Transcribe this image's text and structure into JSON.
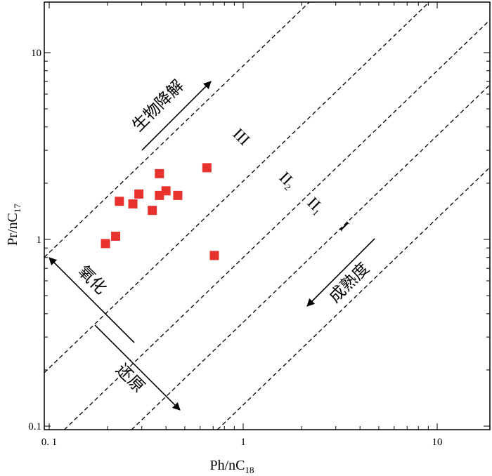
{
  "chart_data": {
    "type": "scatter",
    "title": "",
    "xlabel": "Ph/nC",
    "xlabel_sub": "18",
    "ylabel": "Pr/nC",
    "ylabel_sub": "17",
    "x_scale": "log",
    "y_scale": "log",
    "xlim": [
      0.1,
      20
    ],
    "ylim": [
      0.1,
      20
    ],
    "x_tick_labels": [
      "0. 1",
      "1",
      "10"
    ],
    "y_tick_labels": [
      "0.1",
      "1",
      "10"
    ],
    "marker_color": "#e8322e",
    "points": [
      {
        "x": 0.195,
        "y": 0.95
      },
      {
        "x": 0.22,
        "y": 1.04
      },
      {
        "x": 0.23,
        "y": 1.6
      },
      {
        "x": 0.27,
        "y": 1.55
      },
      {
        "x": 0.29,
        "y": 1.75
      },
      {
        "x": 0.34,
        "y": 1.43
      },
      {
        "x": 0.37,
        "y": 2.25
      },
      {
        "x": 0.37,
        "y": 1.72
      },
      {
        "x": 0.4,
        "y": 1.82
      },
      {
        "x": 0.46,
        "y": 1.72
      },
      {
        "x": 0.65,
        "y": 2.42
      },
      {
        "x": 0.71,
        "y": 0.82
      }
    ],
    "boundary_lines": [
      {
        "ratio": 8.5
      },
      {
        "ratio": 2.05
      },
      {
        "ratio": 0.8
      },
      {
        "ratio": 0.36
      },
      {
        "ratio": 0.13
      }
    ],
    "zone_labels": [
      {
        "main": "III",
        "sub": ""
      },
      {
        "main": "II",
        "sub": "2"
      },
      {
        "main": "II",
        "sub": "1"
      },
      {
        "main": "I",
        "sub": ""
      }
    ],
    "annotations": {
      "biodegradation": "生物降解",
      "maturity": "成熟度",
      "oxidation": "氧化",
      "reduction": "还原"
    }
  }
}
